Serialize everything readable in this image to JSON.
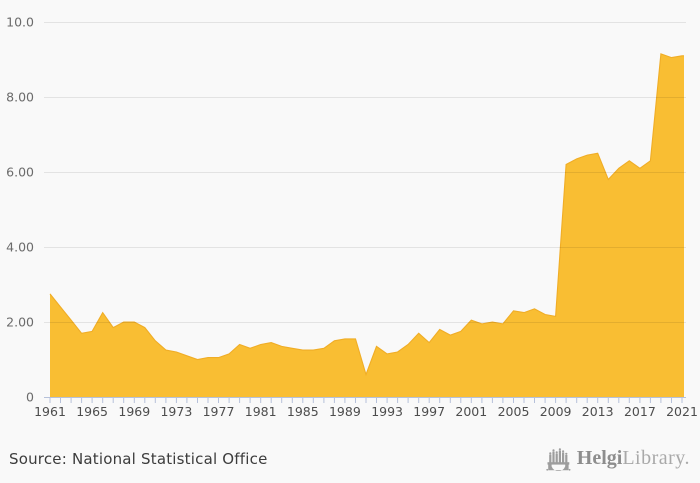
{
  "figure": {
    "source_label": "Source: National Statistical Office",
    "brand": {
      "name_bold": "Helgi",
      "name_light": "Library."
    }
  },
  "colors": {
    "background": "#F9F9F9",
    "area_fill": "#F9BE33",
    "area_edge": "#F0AD26",
    "gridline": "rgba(0,0,0,0.085)",
    "axis": "#B6C1DA",
    "y_label_text": "#6B6B6B",
    "x_label_text": "#4D4D4D",
    "source_text": "#3C3C3C",
    "brand_gray": "#9D9D9D"
  },
  "chart_data": {
    "type": "area",
    "title": "",
    "xlabel": "",
    "ylabel": "",
    "ylim": [
      0,
      10
    ],
    "grid": "horizontal",
    "legend": "none",
    "x_tick_step_years": 1,
    "x_label_every_years": 4,
    "x": [
      1961,
      1962,
      1963,
      1964,
      1965,
      1966,
      1967,
      1968,
      1969,
      1970,
      1971,
      1972,
      1973,
      1974,
      1975,
      1976,
      1977,
      1978,
      1979,
      1980,
      1981,
      1982,
      1983,
      1984,
      1985,
      1986,
      1987,
      1988,
      1989,
      1990,
      1991,
      1992,
      1993,
      1994,
      1995,
      1996,
      1997,
      1998,
      1999,
      2000,
      2001,
      2002,
      2003,
      2004,
      2005,
      2006,
      2007,
      2008,
      2009,
      2010,
      2011,
      2012,
      2013,
      2014,
      2015,
      2016,
      2017,
      2018,
      2019,
      2020,
      2021
    ],
    "values": [
      2.75,
      2.4,
      2.05,
      1.7,
      1.75,
      2.25,
      1.85,
      2.0,
      2.0,
      1.85,
      1.5,
      1.25,
      1.2,
      1.1,
      1.0,
      1.05,
      1.05,
      1.15,
      1.4,
      1.3,
      1.4,
      1.45,
      1.35,
      1.3,
      1.25,
      1.25,
      1.3,
      1.5,
      1.55,
      1.55,
      0.6,
      1.35,
      1.15,
      1.2,
      1.4,
      1.7,
      1.45,
      1.8,
      1.65,
      1.75,
      2.05,
      1.95,
      2.0,
      1.95,
      2.3,
      2.25,
      2.35,
      2.2,
      2.15,
      6.2,
      6.35,
      6.45,
      6.5,
      5.8,
      6.1,
      6.3,
      6.1,
      6.3,
      9.15,
      9.05,
      9.1
    ],
    "y_ticks": [
      {
        "value": 10,
        "label": "10.0"
      },
      {
        "value": 8,
        "label": "8.00"
      },
      {
        "value": 6,
        "label": "6.00"
      },
      {
        "value": 4,
        "label": "4.00"
      },
      {
        "value": 2,
        "label": "2.00"
      },
      {
        "value": 0,
        "label": "0"
      }
    ],
    "x_tick_labels": [
      "1961",
      "1965",
      "1969",
      "1973",
      "1977",
      "1981",
      "1985",
      "1989",
      "1993",
      "1997",
      "2001",
      "2005",
      "2009",
      "2013",
      "2017",
      "2021"
    ]
  }
}
